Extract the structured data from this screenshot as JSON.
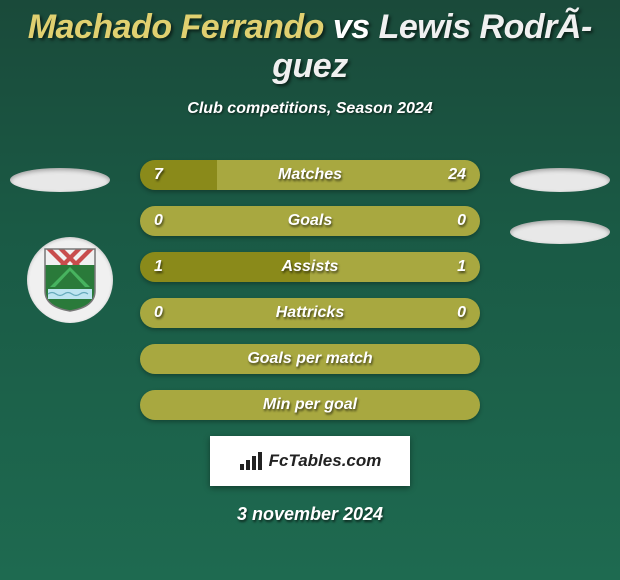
{
  "title": {
    "player1": {
      "name": "Machado Ferrando",
      "color": "#e0d070"
    },
    "vs": " vs ",
    "vs_color": "#ffffff",
    "player2": {
      "name": "Lewis RodrÃ­guez",
      "color": "#f0f0f0"
    }
  },
  "subtitle": {
    "text": "Club competitions, Season 2024",
    "color": "#ffffff"
  },
  "colors": {
    "bar_olive": "#8a8a1a",
    "bar_track": "#a8a840",
    "text": "#ffffff"
  },
  "stats": [
    {
      "label": "Matches",
      "left_value": "7",
      "right_value": "24",
      "left_pct": 22.6,
      "right_pct": 77.4,
      "left_color": "#8a8a1a",
      "right_color": "#a8a840",
      "show_values": true
    },
    {
      "label": "Goals",
      "left_value": "0",
      "right_value": "0",
      "left_pct": 50,
      "right_pct": 50,
      "left_color": "#a8a840",
      "right_color": "#a8a840",
      "show_values": true
    },
    {
      "label": "Assists",
      "left_value": "1",
      "right_value": "1",
      "left_pct": 50,
      "right_pct": 50,
      "left_color": "#8a8a1a",
      "right_color": "#a8a840",
      "show_values": true
    },
    {
      "label": "Hattricks",
      "left_value": "0",
      "right_value": "0",
      "left_pct": 50,
      "right_pct": 50,
      "left_color": "#a8a840",
      "right_color": "#a8a840",
      "show_values": true
    },
    {
      "label": "Goals per match",
      "full_color": "#a8a840",
      "show_values": false
    },
    {
      "label": "Min per goal",
      "full_color": "#a8a840",
      "show_values": false
    }
  ],
  "brand": {
    "text": "FcTables.com",
    "icon_color": "#222222"
  },
  "date": {
    "text": "3 november 2024",
    "color": "#ffffff"
  },
  "badge": {
    "stripe_a": "#c84c4c",
    "stripe_b": "#f0f0f0",
    "shield_green": "#2a7a3a",
    "shield_border": "#47b35f",
    "water": "#bde4f0"
  }
}
